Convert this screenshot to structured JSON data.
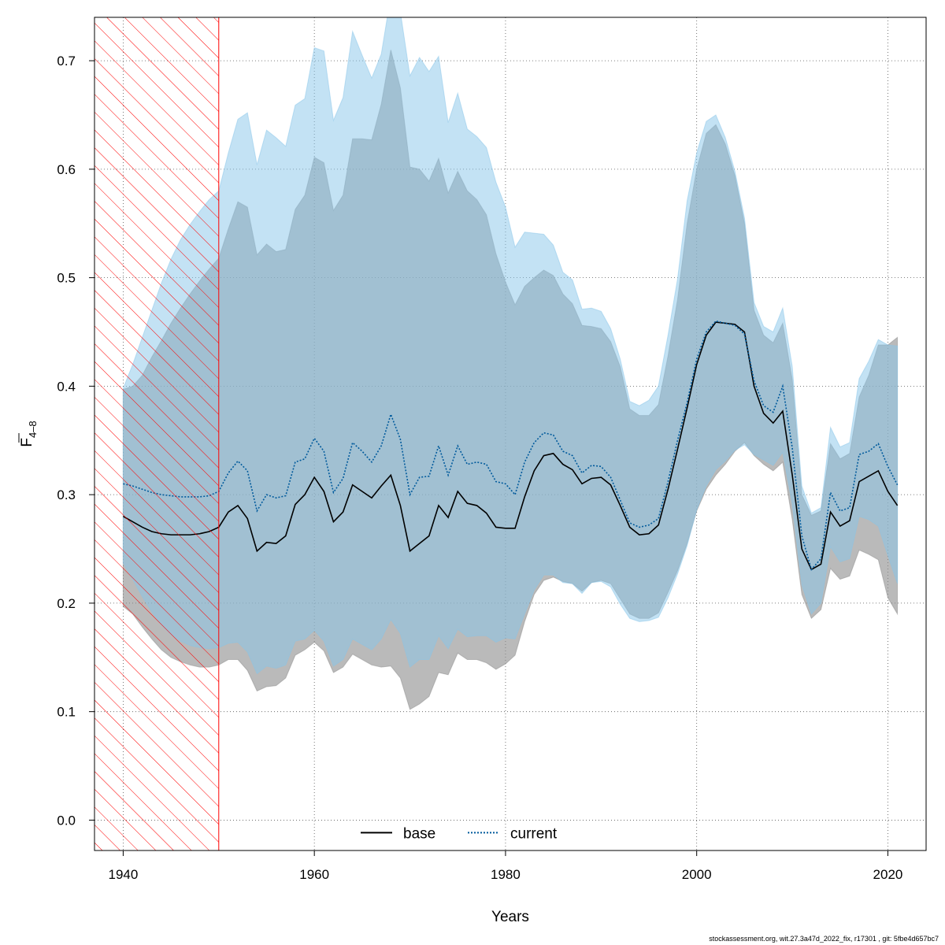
{
  "chart_data": {
    "type": "line",
    "title": "",
    "xlabel": "Years",
    "ylabel": {
      "base": "F",
      "subscript": "4–8"
    },
    "xlim": [
      1937,
      2024
    ],
    "ylim": [
      -0.028,
      0.74
    ],
    "xticks": [
      1940,
      1960,
      1980,
      2000,
      2020
    ],
    "yticks": [
      0.0,
      0.1,
      0.2,
      0.3,
      0.4,
      0.5,
      0.6,
      0.7
    ],
    "ytick_labels": [
      "0.0",
      "0.1",
      "0.2",
      "0.3",
      "0.4",
      "0.5",
      "0.6",
      "0.7"
    ],
    "grid": true,
    "legend_position": "bottom-center",
    "shaded_region": {
      "from": 1937,
      "to": 1950,
      "pattern": "hatch",
      "color": "#ff0000"
    },
    "x": [
      1940,
      1941,
      1942,
      1943,
      1944,
      1945,
      1946,
      1947,
      1948,
      1949,
      1950,
      1951,
      1952,
      1953,
      1954,
      1955,
      1956,
      1957,
      1958,
      1959,
      1960,
      1961,
      1962,
      1963,
      1964,
      1965,
      1966,
      1967,
      1968,
      1969,
      1970,
      1971,
      1972,
      1973,
      1974,
      1975,
      1976,
      1977,
      1978,
      1979,
      1980,
      1981,
      1982,
      1983,
      1984,
      1985,
      1986,
      1987,
      1988,
      1989,
      1990,
      1991,
      1992,
      1993,
      1994,
      1995,
      1996,
      1997,
      1998,
      1999,
      2000,
      2001,
      2002,
      2003,
      2004,
      2005,
      2006,
      2007,
      2008,
      2009,
      2010,
      2011,
      2012,
      2013,
      2014,
      2015,
      2016,
      2017,
      2018,
      2019,
      2020,
      2021
    ],
    "series": [
      {
        "name": "base",
        "line_color": "#000000",
        "dash": "solid",
        "band_color": "#8c8c8c",
        "values": [
          0.28,
          0.275,
          0.27,
          0.266,
          0.264,
          0.263,
          0.263,
          0.263,
          0.264,
          0.266,
          0.27,
          0.284,
          0.29,
          0.278,
          0.248,
          0.256,
          0.255,
          0.262,
          0.291,
          0.3,
          0.316,
          0.303,
          0.275,
          0.284,
          0.309,
          0.303,
          0.297,
          0.308,
          0.318,
          0.29,
          0.248,
          0.255,
          0.262,
          0.29,
          0.279,
          0.303,
          0.292,
          0.29,
          0.283,
          0.27,
          0.269,
          0.269,
          0.298,
          0.322,
          0.336,
          0.338,
          0.328,
          0.323,
          0.31,
          0.315,
          0.316,
          0.309,
          0.29,
          0.27,
          0.263,
          0.264,
          0.272,
          0.305,
          0.342,
          0.38,
          0.42,
          0.447,
          0.459,
          0.458,
          0.457,
          0.45,
          0.4,
          0.375,
          0.366,
          0.377,
          0.318,
          0.25,
          0.231,
          0.236,
          0.284,
          0.271,
          0.276,
          0.312,
          0.317,
          0.322,
          0.303,
          0.29
        ],
        "lower": [
          0.197,
          0.19,
          0.178,
          0.167,
          0.157,
          0.15,
          0.146,
          0.143,
          0.141,
          0.141,
          0.143,
          0.148,
          0.148,
          0.138,
          0.119,
          0.123,
          0.124,
          0.131,
          0.152,
          0.157,
          0.164,
          0.156,
          0.136,
          0.141,
          0.153,
          0.148,
          0.143,
          0.141,
          0.142,
          0.131,
          0.102,
          0.107,
          0.114,
          0.136,
          0.134,
          0.154,
          0.148,
          0.148,
          0.145,
          0.139,
          0.144,
          0.152,
          0.183,
          0.208,
          0.221,
          0.224,
          0.22,
          0.218,
          0.211,
          0.219,
          0.221,
          0.218,
          0.204,
          0.19,
          0.186,
          0.186,
          0.191,
          0.21,
          0.23,
          0.255,
          0.285,
          0.305,
          0.318,
          0.328,
          0.34,
          0.348,
          0.336,
          0.328,
          0.322,
          0.33,
          0.277,
          0.208,
          0.186,
          0.194,
          0.232,
          0.222,
          0.225,
          0.249,
          0.245,
          0.24,
          0.205,
          0.19
        ],
        "upper": [
          0.397,
          0.4,
          0.41,
          0.427,
          0.442,
          0.458,
          0.472,
          0.485,
          0.497,
          0.508,
          0.518,
          0.545,
          0.57,
          0.565,
          0.521,
          0.531,
          0.524,
          0.526,
          0.563,
          0.576,
          0.611,
          0.606,
          0.562,
          0.576,
          0.628,
          0.628,
          0.627,
          0.66,
          0.71,
          0.675,
          0.602,
          0.6,
          0.589,
          0.61,
          0.578,
          0.598,
          0.58,
          0.572,
          0.558,
          0.522,
          0.496,
          0.475,
          0.492,
          0.5,
          0.507,
          0.502,
          0.485,
          0.476,
          0.456,
          0.455,
          0.453,
          0.441,
          0.418,
          0.379,
          0.373,
          0.373,
          0.383,
          0.428,
          0.48,
          0.55,
          0.6,
          0.633,
          0.641,
          0.623,
          0.594,
          0.55,
          0.47,
          0.447,
          0.44,
          0.458,
          0.406,
          0.3,
          0.281,
          0.285,
          0.347,
          0.333,
          0.338,
          0.39,
          0.41,
          0.438,
          0.438,
          0.445
        ]
      },
      {
        "name": "current",
        "line_color": "#005a9c",
        "dash": "dotted",
        "band_color": "#87c5ea",
        "values": [
          0.31,
          0.308,
          0.305,
          0.302,
          0.3,
          0.299,
          0.298,
          0.298,
          0.298,
          0.299,
          0.303,
          0.32,
          0.331,
          0.322,
          0.285,
          0.3,
          0.297,
          0.299,
          0.33,
          0.333,
          0.352,
          0.34,
          0.302,
          0.315,
          0.348,
          0.34,
          0.33,
          0.345,
          0.374,
          0.351,
          0.3,
          0.316,
          0.317,
          0.345,
          0.318,
          0.345,
          0.328,
          0.33,
          0.328,
          0.312,
          0.31,
          0.3,
          0.33,
          0.348,
          0.357,
          0.355,
          0.34,
          0.336,
          0.32,
          0.327,
          0.326,
          0.316,
          0.295,
          0.274,
          0.27,
          0.272,
          0.278,
          0.312,
          0.35,
          0.385,
          0.425,
          0.45,
          0.46,
          0.458,
          0.456,
          0.448,
          0.405,
          0.382,
          0.376,
          0.4,
          0.343,
          0.262,
          0.231,
          0.241,
          0.302,
          0.285,
          0.288,
          0.337,
          0.34,
          0.347,
          0.326,
          0.309
        ],
        "lower": [
          0.237,
          0.222,
          0.206,
          0.192,
          0.18,
          0.171,
          0.165,
          0.161,
          0.159,
          0.158,
          0.159,
          0.163,
          0.164,
          0.155,
          0.135,
          0.142,
          0.14,
          0.143,
          0.165,
          0.167,
          0.175,
          0.165,
          0.142,
          0.148,
          0.167,
          0.162,
          0.157,
          0.167,
          0.185,
          0.172,
          0.141,
          0.148,
          0.148,
          0.17,
          0.158,
          0.176,
          0.169,
          0.17,
          0.17,
          0.164,
          0.168,
          0.167,
          0.19,
          0.212,
          0.226,
          0.226,
          0.219,
          0.218,
          0.209,
          0.219,
          0.22,
          0.215,
          0.199,
          0.186,
          0.183,
          0.184,
          0.187,
          0.205,
          0.227,
          0.253,
          0.286,
          0.308,
          0.323,
          0.331,
          0.341,
          0.346,
          0.337,
          0.332,
          0.327,
          0.339,
          0.291,
          0.217,
          0.19,
          0.2,
          0.252,
          0.238,
          0.241,
          0.28,
          0.277,
          0.271,
          0.244,
          0.218
        ],
        "upper": [
          0.398,
          0.42,
          0.445,
          0.47,
          0.495,
          0.517,
          0.535,
          0.549,
          0.561,
          0.572,
          0.58,
          0.615,
          0.646,
          0.652,
          0.604,
          0.636,
          0.629,
          0.621,
          0.659,
          0.665,
          0.712,
          0.709,
          0.645,
          0.666,
          0.727,
          0.705,
          0.684,
          0.706,
          0.76,
          0.745,
          0.686,
          0.703,
          0.69,
          0.704,
          0.643,
          0.67,
          0.637,
          0.63,
          0.62,
          0.588,
          0.565,
          0.528,
          0.542,
          0.541,
          0.54,
          0.53,
          0.505,
          0.498,
          0.471,
          0.472,
          0.469,
          0.453,
          0.425,
          0.386,
          0.382,
          0.387,
          0.4,
          0.447,
          0.499,
          0.571,
          0.615,
          0.644,
          0.65,
          0.629,
          0.598,
          0.555,
          0.477,
          0.455,
          0.45,
          0.472,
          0.418,
          0.308,
          0.283,
          0.288,
          0.362,
          0.344,
          0.348,
          0.407,
          0.423,
          0.443,
          0.438,
          0.437
        ]
      }
    ]
  },
  "footer": "stockassessment.org, wit.27.3a47d_2022_fix, r17301 , git: 5fbe4d657bc7"
}
